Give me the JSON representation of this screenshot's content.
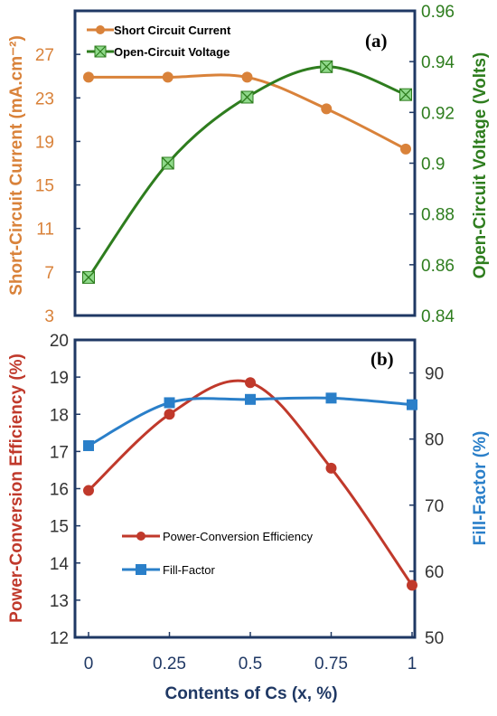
{
  "colors": {
    "frame": "#1f3864",
    "current": "#d9823a",
    "voltage": "#2e7d1e",
    "voltage_marker": "#8fd98a",
    "efficiency": "#c0392b",
    "fill_factor": "#2a7fc9"
  },
  "chart_data": [
    {
      "type": "line",
      "panel_label": "(a)",
      "x": [
        0,
        0.25,
        0.5,
        0.75,
        1
      ],
      "series": [
        {
          "name": "Short Circuit Current",
          "axis": "left",
          "values": [
            24.9,
            24.9,
            24.9,
            22.0,
            18.3
          ],
          "marker": "circle"
        },
        {
          "name": "Open-Circuit Voltage",
          "axis": "right",
          "values": [
            0.855,
            0.9,
            0.926,
            0.938,
            0.927
          ],
          "marker": "square-x"
        }
      ],
      "ylabel": "Short-Circuit Current (mA.cm⁻²)",
      "y2label": "Open-Circuit Voltage (Volts)",
      "ylim": [
        3,
        31
      ],
      "yticks": [
        3,
        7,
        11,
        15,
        19,
        23,
        27
      ],
      "y2lim": [
        0.84,
        0.96
      ],
      "y2ticks": [
        "0.84",
        "0.86",
        "0.88",
        "0.9",
        "0.92",
        "0.94",
        "0.96"
      ],
      "legend": "top-left",
      "grid": false
    },
    {
      "type": "line",
      "panel_label": "(b)",
      "x": [
        0,
        0.25,
        0.5,
        0.75,
        1
      ],
      "xticks": [
        "0",
        "0.25",
        "0.5",
        "0.75",
        "1"
      ],
      "series": [
        {
          "name": "Power-Conversion Efficiency",
          "axis": "left",
          "values": [
            15.95,
            18.0,
            18.85,
            16.55,
            13.4
          ],
          "marker": "circle"
        },
        {
          "name": "Fill-Factor",
          "axis": "right",
          "values": [
            79.0,
            85.5,
            86.0,
            86.2,
            85.2
          ],
          "marker": "square"
        }
      ],
      "xlabel": "Contents of Cs (x, %)",
      "ylabel": "Power-Conversion Efficiency (%)",
      "y2label": "Fill-Factor (%)",
      "ylim": [
        12,
        20
      ],
      "yticks": [
        12,
        13,
        14,
        15,
        16,
        17,
        18,
        19,
        20
      ],
      "y2lim": [
        50,
        95
      ],
      "y2ticks": [
        50,
        60,
        70,
        80,
        90
      ],
      "legend": "center-left",
      "grid": false
    }
  ]
}
